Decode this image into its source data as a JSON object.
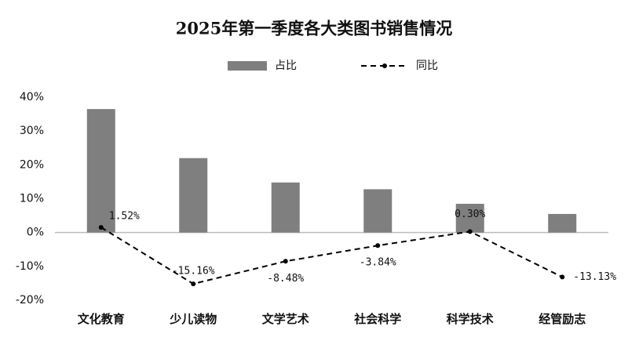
{
  "chart_data": {
    "type": "bar",
    "title": "2025年第一季度各大类图书销售情况",
    "categories": [
      "文化教育",
      "少儿读物",
      "文学艺术",
      "社会科学",
      "科学技术",
      "经管励志"
    ],
    "series": [
      {
        "name": "占比",
        "type": "bar",
        "color": "#7f7f7f",
        "values": [
          36.5,
          22,
          14.8,
          12.8,
          8.5,
          5.5
        ]
      },
      {
        "name": "同比",
        "type": "line",
        "color": "#000000",
        "dashed": true,
        "values": [
          1.52,
          -15.16,
          -8.48,
          -3.84,
          0.3,
          -13.13
        ],
        "value_labels": [
          "1.52%",
          "-15.16%",
          "-8.48%",
          "-3.84%",
          "0.30%",
          "-13.13%"
        ]
      }
    ],
    "ylim": [
      -20,
      40
    ],
    "yticks": [
      {
        "value": -20,
        "label": "-20%"
      },
      {
        "value": -10,
        "label": "-10%"
      },
      {
        "value": 0,
        "label": "0%"
      },
      {
        "value": 10,
        "label": "10%"
      },
      {
        "value": 20,
        "label": "20%"
      },
      {
        "value": 30,
        "label": "30%"
      },
      {
        "value": 40,
        "label": "40%"
      }
    ],
    "legend": "top",
    "grid": false
  }
}
